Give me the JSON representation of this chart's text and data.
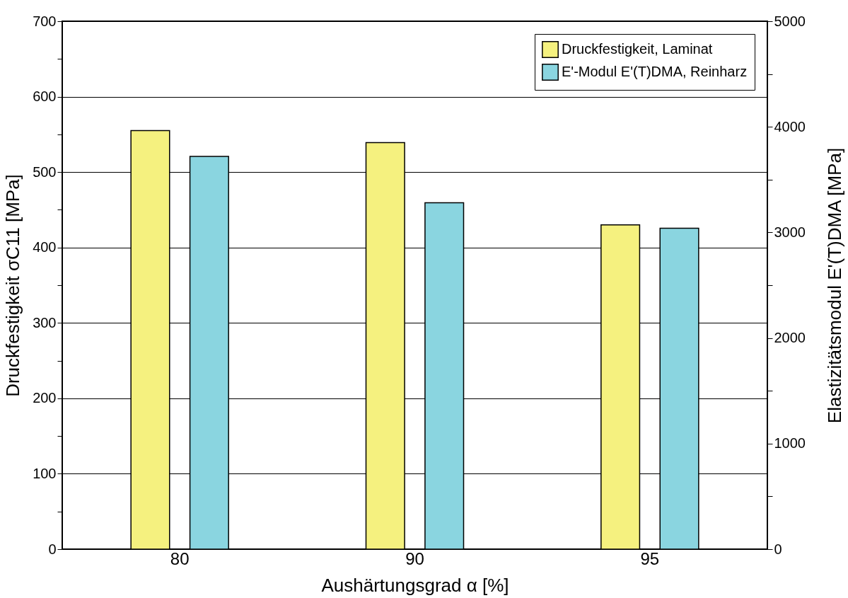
{
  "chart_data": {
    "type": "bar",
    "categories": [
      "80",
      "90",
      "95"
    ],
    "xlabel": "Aushärtungsgrad α [%]",
    "ylabel": "Druckfestigkeit σC11 [MPa]",
    "y2label": "Elastizitätsmodul E'(T)DMA [MPa]",
    "series": [
      {
        "name": "Druckfestigkeit, Laminat",
        "color": "#f5f17f",
        "values": [
          555,
          539,
          430
        ]
      },
      {
        "name": "E'-Modul E'(T)DMA, Reinharz",
        "color": "#8ad5e0",
        "values": [
          3720,
          3280,
          3040
        ],
        "axis": "y2"
      }
    ],
    "ylim": [
      0,
      700
    ],
    "yticks": [
      0,
      {
        "value": 50,
        "label": null
      },
      100,
      {
        "value": 150,
        "label": null
      },
      200,
      {
        "value": 250,
        "label": null
      },
      300,
      {
        "value": 350,
        "label": null
      },
      400,
      {
        "value": 450,
        "label": null
      },
      500,
      {
        "value": 550,
        "label": null
      },
      600,
      {
        "value": 650,
        "label": null
      },
      700
    ],
    "y2lim": [
      0,
      5000
    ],
    "y2ticks": [
      0,
      {
        "value": 500,
        "label": null
      },
      1000,
      {
        "value": 1500,
        "label": null
      },
      2000,
      {
        "value": 2500,
        "label": null
      },
      3000,
      {
        "value": 3500,
        "label": null
      },
      4000,
      {
        "value": 4500,
        "label": null
      },
      5000
    ],
    "grid": "y",
    "legend": "top right"
  }
}
